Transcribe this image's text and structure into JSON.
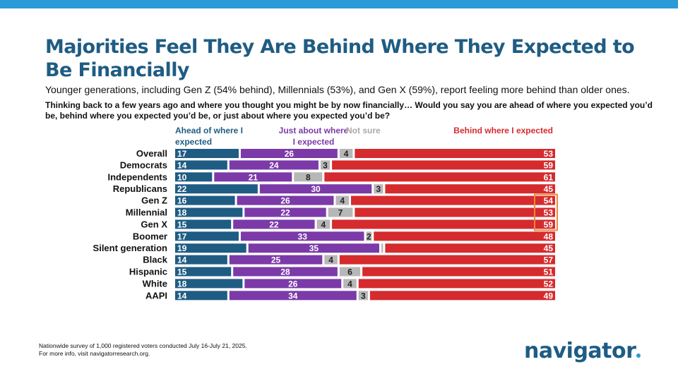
{
  "header": {
    "title": "Majorities Feel They Are Behind Where They Expected to Be Financially",
    "subtitle": "Younger generations, including Gen Z (54% behind), Millennials (53%), and Gen X (59%), report feeling more behind than older ones.",
    "question": "Thinking back to a few years ago and where you thought you might be by now financially… Would you say you are ahead of where you expected you’d be, behind where you expected you’d be, or just about where you expected you’d be?"
  },
  "footnote": {
    "line1": "Nationwide survey of 1,000 registered voters conducted July 16-July 21, 2025.",
    "line2": "For more info, visit navigatorresearch.org."
  },
  "logo": {
    "text": "navigator"
  },
  "colors": {
    "ahead": "#1f5c83",
    "just_about": "#7b3aa8",
    "not_sure": "#b7b7b7",
    "behind": "#d52b2e",
    "highlight": "#ef8a3c",
    "title": "#1f5c83",
    "top_bar": "#2b9ad6"
  },
  "chart_data": {
    "type": "bar",
    "orientation": "horizontal",
    "stacked": true,
    "xlim": [
      0,
      100
    ],
    "legend_position": "top",
    "highlight": {
      "series": "Behind where I expected",
      "categories": [
        "Gen Z",
        "Millennial",
        "Gen X"
      ]
    },
    "categories": [
      "Overall",
      "Democrats",
      "Independents",
      "Republicans",
      "Gen Z",
      "Millennial",
      "Gen X",
      "Boomer",
      "Silent generation",
      "Black",
      "Hispanic",
      "White",
      "AAPI"
    ],
    "groups": [
      [
        "Overall"
      ],
      [
        "Democrats",
        "Independents",
        "Republicans"
      ],
      [
        "Gen Z",
        "Millennial",
        "Gen X",
        "Boomer",
        "Silent generation"
      ],
      [
        "Black",
        "Hispanic",
        "White",
        "AAPI"
      ]
    ],
    "series": [
      {
        "name": "Ahead of where I expected",
        "legend_lines": [
          "Ahead of where I",
          "expected"
        ],
        "color": "#1f5c83",
        "values": [
          17,
          14,
          10,
          22,
          16,
          18,
          15,
          17,
          19,
          14,
          15,
          18,
          14
        ]
      },
      {
        "name": "Just about where I expected",
        "legend_lines": [
          "Just about where",
          "I expected"
        ],
        "color": "#7b3aa8",
        "values": [
          26,
          24,
          21,
          30,
          26,
          22,
          22,
          33,
          35,
          25,
          28,
          26,
          34
        ]
      },
      {
        "name": "Not sure",
        "legend_lines": [
          "Not sure"
        ],
        "color": "#b7b7b7",
        "values": [
          4,
          3,
          8,
          3,
          4,
          7,
          4,
          2,
          1,
          4,
          6,
          4,
          3
        ],
        "labels": [
          "4",
          "3",
          "8",
          "3",
          "4",
          "7",
          "4",
          "2",
          "",
          "4",
          "6",
          "4",
          "3"
        ]
      },
      {
        "name": "Behind where I expected",
        "legend_lines": [
          "Behind where I expected"
        ],
        "color": "#d52b2e",
        "values": [
          53,
          59,
          61,
          45,
          54,
          53,
          59,
          48,
          45,
          57,
          51,
          52,
          49
        ]
      }
    ]
  }
}
